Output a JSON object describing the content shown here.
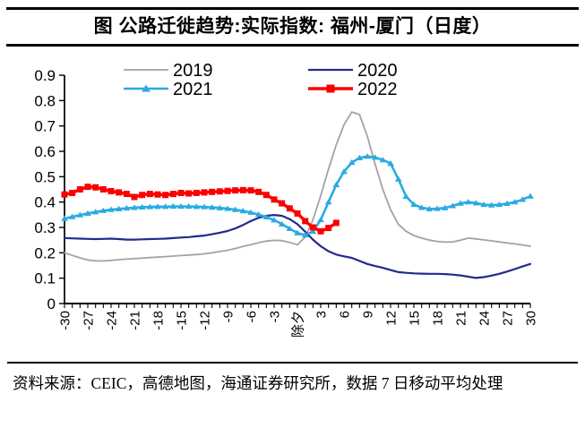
{
  "header": {
    "title": "图  公路迁徙趋势:实际指数: 福州-厦门（日度）"
  },
  "source": {
    "text": "资料来源：CEIC，高德地图，海通证券研究所，数据 7 日移动平均处理"
  },
  "chart_data": {
    "type": "line",
    "title": "公路迁徙趋势:实际指数: 福州-厦门（日度）",
    "xlabel": "",
    "ylabel": "",
    "x_min": -30,
    "x_max": 30,
    "x_tick_step": 3,
    "x_tick_labels": [
      "-30",
      "-27",
      "-24",
      "-21",
      "-18",
      "-15",
      "-12",
      "-9",
      "-6",
      "-3",
      "除夕",
      "3",
      "6",
      "9",
      "12",
      "15",
      "18",
      "21",
      "24",
      "27",
      "30"
    ],
    "y_tick_step": 0.1,
    "y_tick_labels": [
      "0",
      "0.1",
      "0.2",
      "0.3",
      "0.4",
      "0.5",
      "0.6",
      "0.7",
      "0.8",
      "0.9"
    ],
    "ylim": [
      0,
      0.9
    ],
    "grid": false,
    "legend_position": "top-inside",
    "axis_color": "#000000",
    "series": [
      {
        "name": "2019",
        "color": "#A3A3A3",
        "marker": "none",
        "line_width": 1.8,
        "values": [
          0.2,
          0.19,
          0.18,
          0.172,
          0.168,
          0.168,
          0.17,
          0.173,
          0.175,
          0.177,
          0.179,
          0.181,
          0.183,
          0.185,
          0.187,
          0.189,
          0.191,
          0.193,
          0.196,
          0.2,
          0.205,
          0.21,
          0.217,
          0.225,
          0.232,
          0.24,
          0.246,
          0.249,
          0.248,
          0.241,
          0.232,
          0.262,
          0.33,
          0.425,
          0.53,
          0.625,
          0.705,
          0.755,
          0.745,
          0.66,
          0.55,
          0.45,
          0.37,
          0.312,
          0.285,
          0.268,
          0.258,
          0.25,
          0.245,
          0.242,
          0.243,
          0.25,
          0.258,
          0.255,
          0.251,
          0.247,
          0.243,
          0.239,
          0.235,
          0.231,
          0.226
        ]
      },
      {
        "name": "2020",
        "color": "#23298F",
        "marker": "none",
        "line_width": 2.2,
        "values": [
          0.258,
          0.257,
          0.256,
          0.255,
          0.254,
          0.255,
          0.256,
          0.254,
          0.252,
          0.252,
          0.253,
          0.254,
          0.255,
          0.256,
          0.258,
          0.26,
          0.262,
          0.265,
          0.268,
          0.273,
          0.279,
          0.286,
          0.296,
          0.31,
          0.325,
          0.338,
          0.346,
          0.349,
          0.346,
          0.333,
          0.313,
          0.283,
          0.252,
          0.226,
          0.206,
          0.193,
          0.186,
          0.18,
          0.168,
          0.156,
          0.148,
          0.141,
          0.132,
          0.124,
          0.121,
          0.119,
          0.118,
          0.117,
          0.117,
          0.116,
          0.114,
          0.111,
          0.106,
          0.101,
          0.104,
          0.11,
          0.117,
          0.126,
          0.136,
          0.146,
          0.156
        ]
      },
      {
        "name": "2021",
        "color": "#29ABE2",
        "marker": "triangle",
        "line_width": 2.6,
        "values": [
          0.335,
          0.342,
          0.349,
          0.355,
          0.361,
          0.366,
          0.37,
          0.373,
          0.376,
          0.378,
          0.38,
          0.381,
          0.382,
          0.382,
          0.383,
          0.383,
          0.383,
          0.382,
          0.381,
          0.379,
          0.377,
          0.374,
          0.37,
          0.365,
          0.359,
          0.351,
          0.341,
          0.329,
          0.313,
          0.295,
          0.278,
          0.27,
          0.284,
          0.33,
          0.4,
          0.468,
          0.52,
          0.556,
          0.574,
          0.58,
          0.576,
          0.566,
          0.552,
          0.49,
          0.422,
          0.39,
          0.378,
          0.373,
          0.374,
          0.377,
          0.385,
          0.395,
          0.4,
          0.396,
          0.39,
          0.388,
          0.39,
          0.394,
          0.4,
          0.41,
          0.423
        ]
      },
      {
        "name": "2022",
        "color": "#FA0000",
        "marker": "square",
        "line_width": 3.4,
        "values": [
          0.43,
          0.436,
          0.45,
          0.46,
          0.458,
          0.45,
          0.443,
          0.438,
          0.432,
          0.42,
          0.428,
          0.432,
          0.43,
          0.428,
          0.432,
          0.436,
          0.434,
          0.436,
          0.438,
          0.44,
          0.442,
          0.444,
          0.446,
          0.447,
          0.446,
          0.44,
          0.428,
          0.41,
          0.395,
          0.375,
          0.355,
          0.325,
          0.3,
          0.285,
          0.298,
          0.318,
          null,
          null,
          null,
          null,
          null,
          null,
          null,
          null,
          null,
          null,
          null,
          null,
          null,
          null,
          null,
          null,
          null,
          null,
          null,
          null,
          null,
          null,
          null,
          null,
          null
        ]
      }
    ]
  }
}
